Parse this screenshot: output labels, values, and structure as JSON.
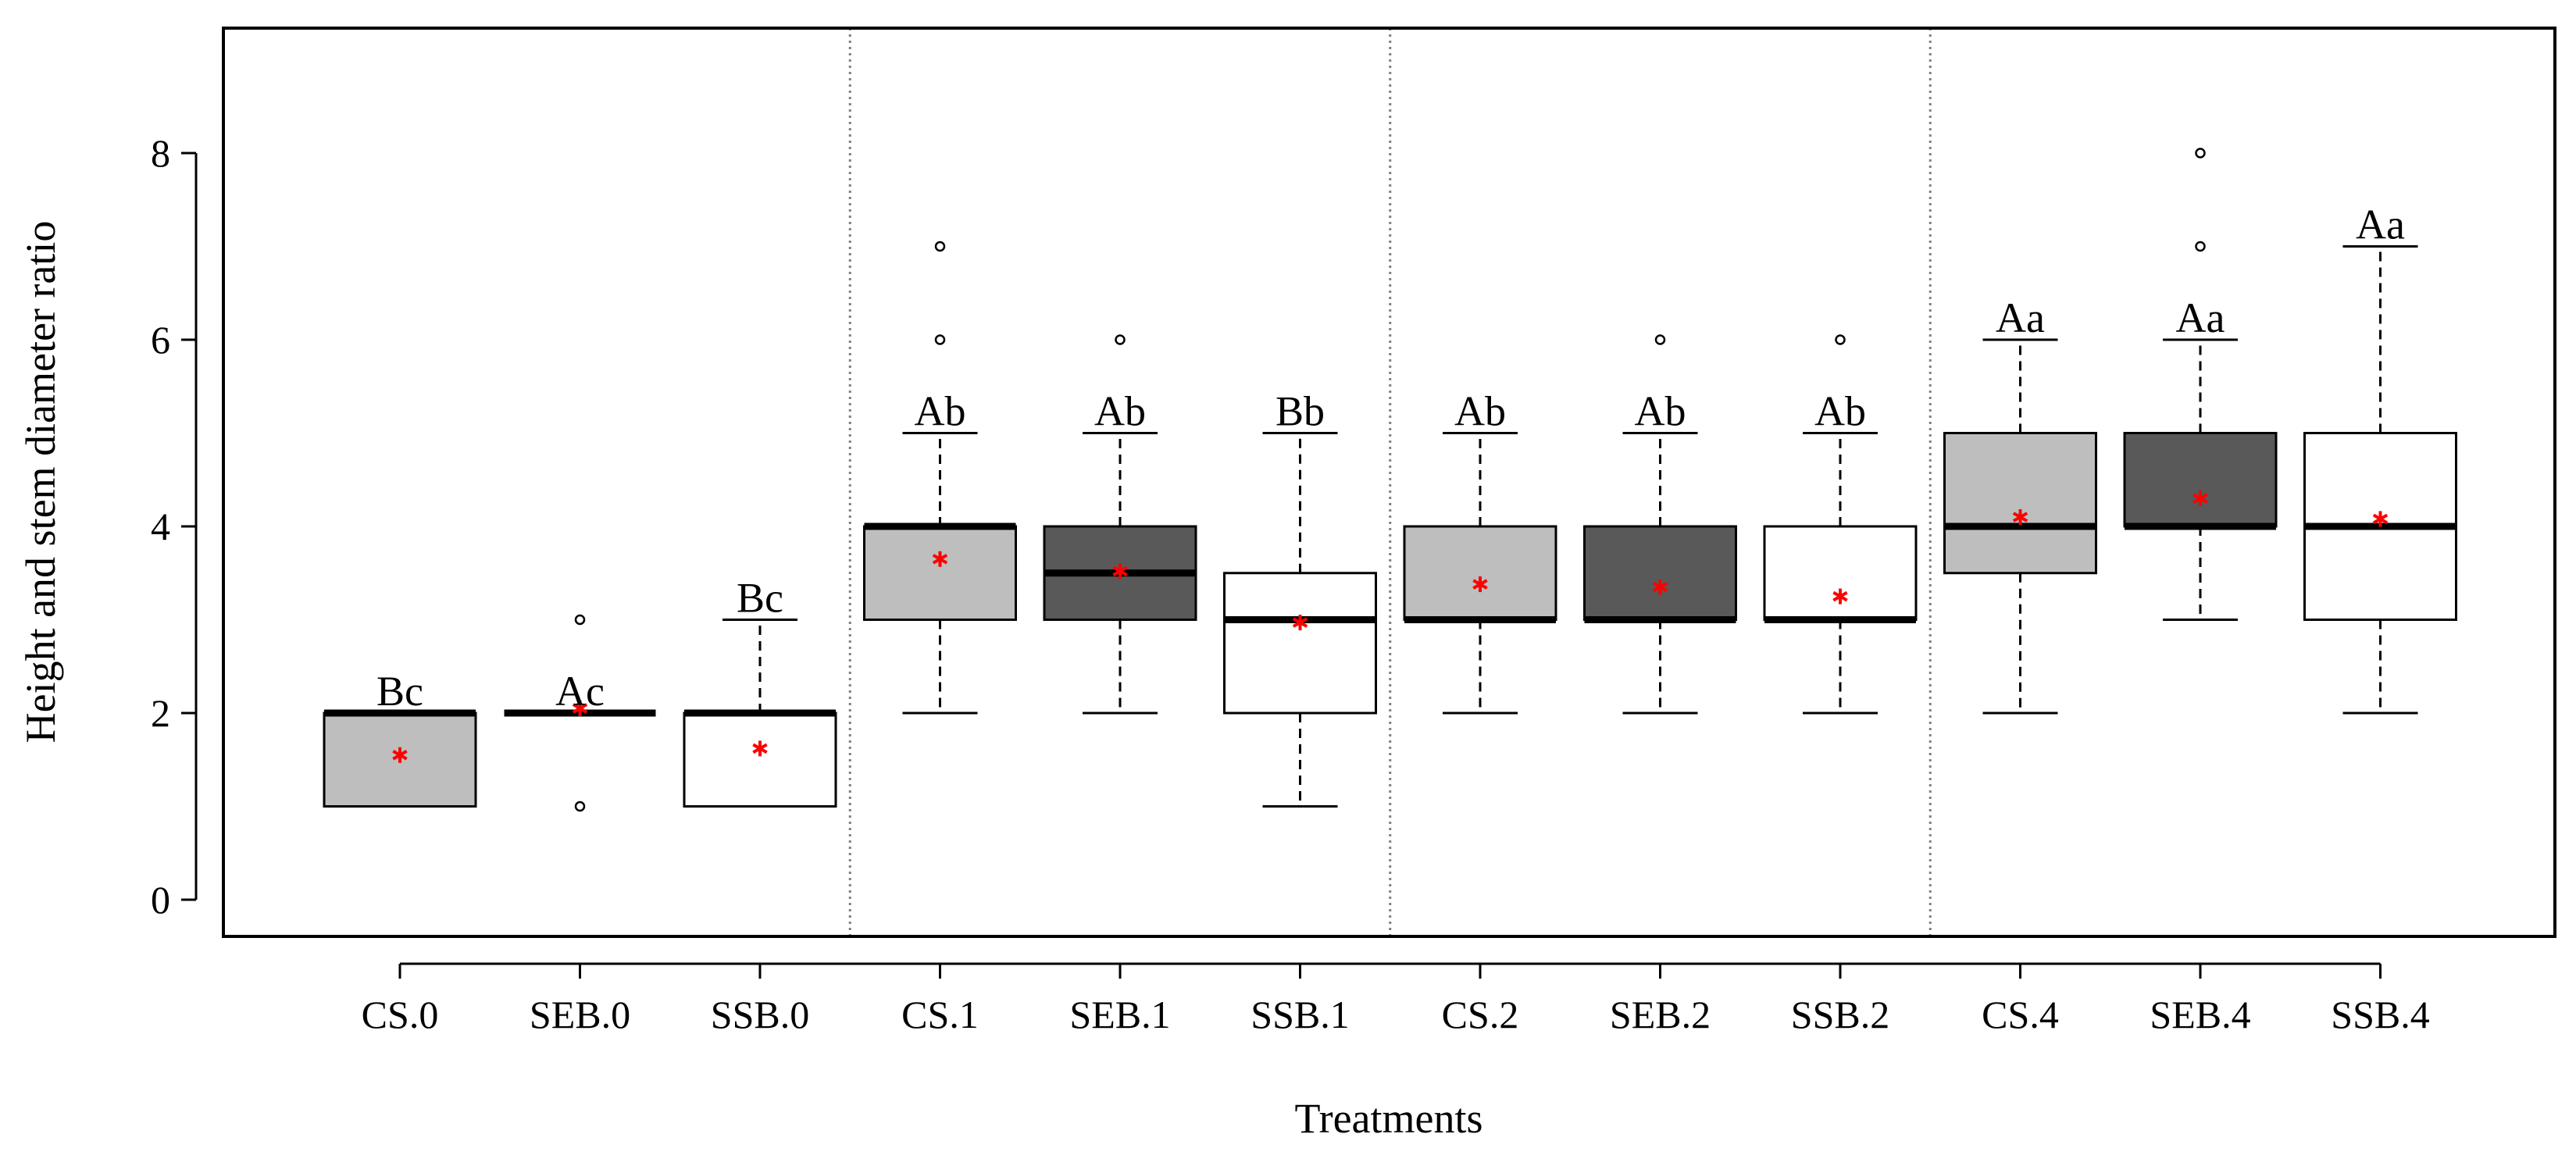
{
  "chart_data": {
    "type": "boxplot",
    "title": "",
    "xlabel": "Treatments",
    "ylabel": "Height and stem diameter ratio",
    "ylim": [
      -0.4,
      9.4
    ],
    "yticks": [
      0,
      2,
      4,
      6,
      8
    ],
    "group_separators_after": [
      2,
      5,
      8
    ],
    "colors": {
      "CS": "#bebebe",
      "SEB": "#595959",
      "SSB": "#ffffff",
      "mean": "#ff0000",
      "axis": "#000000",
      "separator": "#808080"
    },
    "boxes": [
      {
        "label": "CS.0",
        "group": "CS",
        "whisker_low": 1,
        "q1": 1,
        "median": 2,
        "q3": 2,
        "whisker_high": 2,
        "mean": 1.55,
        "outliers": [],
        "sig": "Bc"
      },
      {
        "label": "SEB.0",
        "group": "SEB",
        "whisker_low": 2,
        "q1": 2,
        "median": 2,
        "q3": 2,
        "whisker_high": 2,
        "mean": 2.05,
        "outliers": [
          1,
          3
        ],
        "sig": "Ac"
      },
      {
        "label": "SSB.0",
        "group": "SSB",
        "whisker_low": 1,
        "q1": 1,
        "median": 2,
        "q3": 2,
        "whisker_high": 3,
        "mean": 1.62,
        "outliers": [],
        "sig": "Bc"
      },
      {
        "label": "CS.1",
        "group": "CS",
        "whisker_low": 2,
        "q1": 3,
        "median": 4,
        "q3": 4,
        "whisker_high": 5,
        "mean": 3.65,
        "outliers": [
          6,
          7
        ],
        "sig": "Ab"
      },
      {
        "label": "SEB.1",
        "group": "SEB",
        "whisker_low": 2,
        "q1": 3,
        "median": 3.5,
        "q3": 4,
        "whisker_high": 5,
        "mean": 3.52,
        "outliers": [
          6
        ],
        "sig": "Ab"
      },
      {
        "label": "SSB.1",
        "group": "SSB",
        "whisker_low": 1,
        "q1": 2,
        "median": 3,
        "q3": 3.5,
        "whisker_high": 5,
        "mean": 2.97,
        "outliers": [],
        "sig": "Bb"
      },
      {
        "label": "CS.2",
        "group": "CS",
        "whisker_low": 2,
        "q1": 3,
        "median": 3,
        "q3": 4,
        "whisker_high": 5,
        "mean": 3.38,
        "outliers": [],
        "sig": "Ab"
      },
      {
        "label": "SEB.2",
        "group": "SEB",
        "whisker_low": 2,
        "q1": 3,
        "median": 3,
        "q3": 4,
        "whisker_high": 5,
        "mean": 3.35,
        "outliers": [
          6
        ],
        "sig": "Ab"
      },
      {
        "label": "SSB.2",
        "group": "SSB",
        "whisker_low": 2,
        "q1": 3,
        "median": 3,
        "q3": 4,
        "whisker_high": 5,
        "mean": 3.25,
        "outliers": [
          6
        ],
        "sig": "Ab"
      },
      {
        "label": "CS.4",
        "group": "CS",
        "whisker_low": 2,
        "q1": 3.5,
        "median": 4,
        "q3": 5,
        "whisker_high": 6,
        "mean": 4.1,
        "outliers": [],
        "sig": "Aa"
      },
      {
        "label": "SEB.4",
        "group": "SEB",
        "whisker_low": 3,
        "q1": 4,
        "median": 4,
        "q3": 5,
        "whisker_high": 6,
        "mean": 4.3,
        "outliers": [
          7,
          8
        ],
        "sig": "Aa"
      },
      {
        "label": "SSB.4",
        "group": "SSB",
        "whisker_low": 2,
        "q1": 3,
        "median": 4,
        "q3": 5,
        "whisker_high": 7,
        "mean": 4.08,
        "outliers": [],
        "sig": "Aa"
      }
    ]
  }
}
